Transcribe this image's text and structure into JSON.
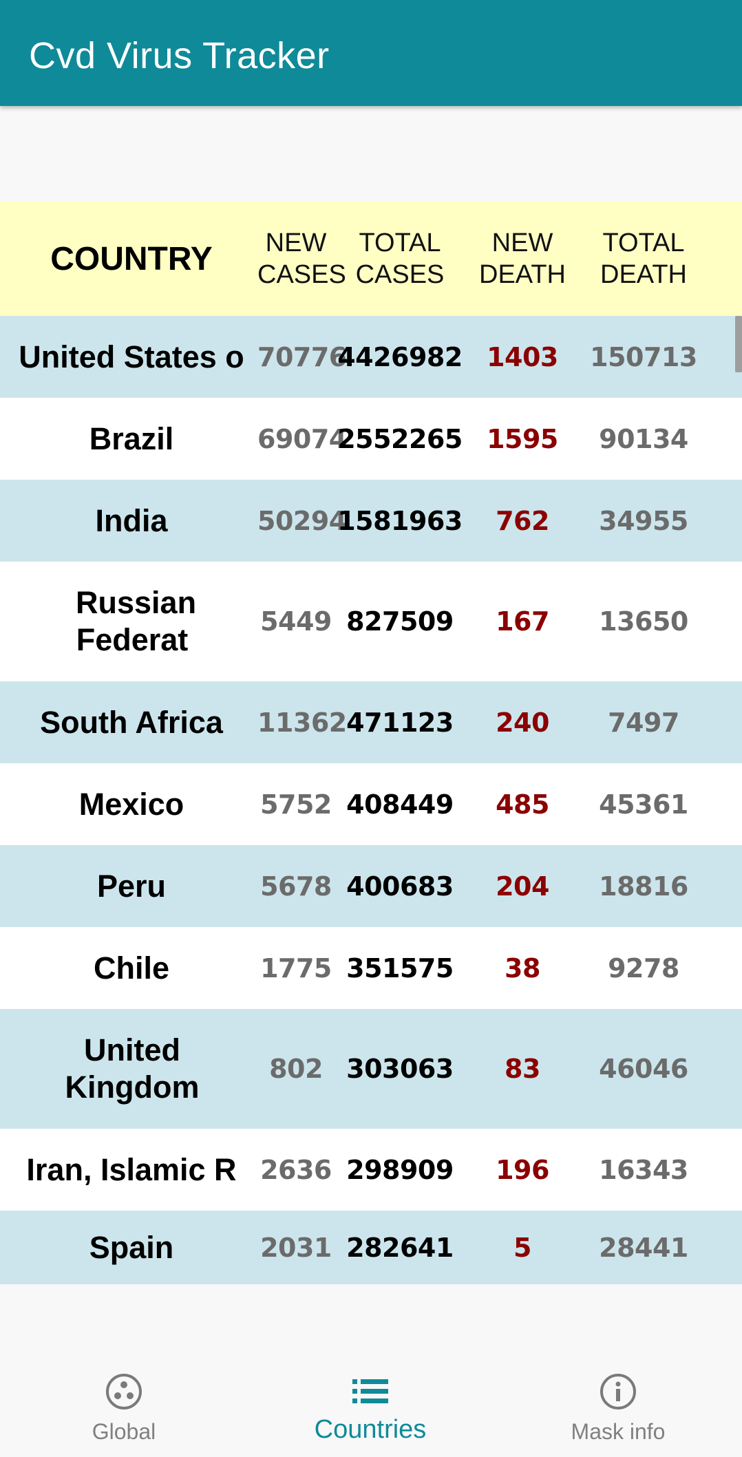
{
  "app_bar": {
    "title": "Cvd Virus Tracker"
  },
  "table": {
    "headers": {
      "country": "COUNTRY",
      "new_cases": "NEW\nCASES",
      "total_cases": "TOTAL\nCASES",
      "new_death": "NEW\nDEATH",
      "total_death": "TOTAL\nDEATH"
    },
    "rows": [
      {
        "country": "United States o",
        "new_cases": "70776",
        "total_cases": "4426982",
        "new_death": "1403",
        "total_death": "150713"
      },
      {
        "country": "Brazil",
        "new_cases": "69074",
        "total_cases": "2552265",
        "new_death": "1595",
        "total_death": "90134"
      },
      {
        "country": "India",
        "new_cases": "50294",
        "total_cases": "1581963",
        "new_death": "762",
        "total_death": "34955"
      },
      {
        "country": "Russian Federat",
        "new_cases": "5449",
        "total_cases": "827509",
        "new_death": "167",
        "total_death": "13650"
      },
      {
        "country": "South Africa",
        "new_cases": "11362",
        "total_cases": "471123",
        "new_death": "240",
        "total_death": "7497"
      },
      {
        "country": "Mexico",
        "new_cases": "5752",
        "total_cases": "408449",
        "new_death": "485",
        "total_death": "45361"
      },
      {
        "country": "Peru",
        "new_cases": "5678",
        "total_cases": "400683",
        "new_death": "204",
        "total_death": "18816"
      },
      {
        "country": "Chile",
        "new_cases": "1775",
        "total_cases": "351575",
        "new_death": "38",
        "total_death": "9278"
      },
      {
        "country": "United Kingdom",
        "new_cases": "802",
        "total_cases": "303063",
        "new_death": "83",
        "total_death": "46046"
      },
      {
        "country": "Iran, Islamic R",
        "new_cases": "2636",
        "total_cases": "298909",
        "new_death": "196",
        "total_death": "16343"
      },
      {
        "country": "Spain",
        "new_cases": "2031",
        "total_cases": "282641",
        "new_death": "5",
        "total_death": "28441"
      }
    ]
  },
  "bottom_nav": {
    "items": [
      {
        "label": "Global",
        "icon": "globe-dots-icon",
        "active": false
      },
      {
        "label": "Countries",
        "icon": "list-icon",
        "active": true
      },
      {
        "label": "Mask info",
        "icon": "info-icon",
        "active": false
      }
    ]
  },
  "colors": {
    "app_bar": "#0f8a99",
    "header_row": "#ffffc4",
    "alt_row": "#cce5ec",
    "new_death": "#8b0000",
    "muted_number": "#6b6b6b",
    "active_nav": "#0f8a99",
    "inactive_nav": "#808080"
  }
}
